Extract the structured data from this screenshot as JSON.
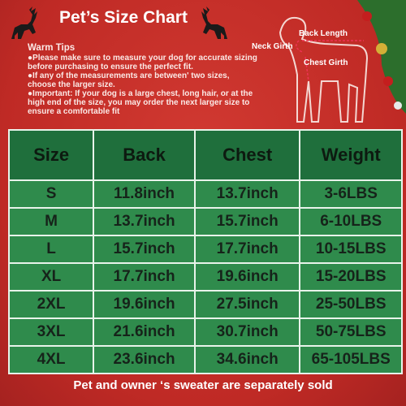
{
  "header": {
    "title": "Pet’s Size Chart"
  },
  "tips": {
    "title": "Warm Tips",
    "items": [
      "●Please make sure to measure your dog for accurate sizing before purchasing to ensure the perfect fit.",
      "●If any of the measurements are between' two sizes, choose the larger size.",
      "●Important: If your dog is a large chest, long hair, or at the high end of the size, you may order the next larger size to ensure a comfortable fit"
    ]
  },
  "diagram": {
    "back_length": "Back Length",
    "neck_girth": "Neck Girth",
    "chest_girth": "Chest Girth"
  },
  "table": {
    "columns": [
      "Size",
      "Back",
      "Chest",
      "Weight"
    ],
    "rows": [
      [
        "S",
        "11.8inch",
        "13.7inch",
        "3-6LBS"
      ],
      [
        "M",
        "13.7inch",
        "15.7inch",
        "6-10LBS"
      ],
      [
        "L",
        "15.7inch",
        "17.7inch",
        "10-15LBS"
      ],
      [
        "XL",
        "17.7inch",
        "19.6inch",
        "15-20LBS"
      ],
      [
        "2XL",
        "19.6inch",
        "27.5inch",
        "25-50LBS"
      ],
      [
        "3XL",
        "21.6inch",
        "30.7inch",
        "50-75LBS"
      ],
      [
        "4XL",
        "23.6inch",
        "34.6inch",
        "65-105LBS"
      ]
    ]
  },
  "footer": "Pet and owner ‘s sweater are separately sold"
}
